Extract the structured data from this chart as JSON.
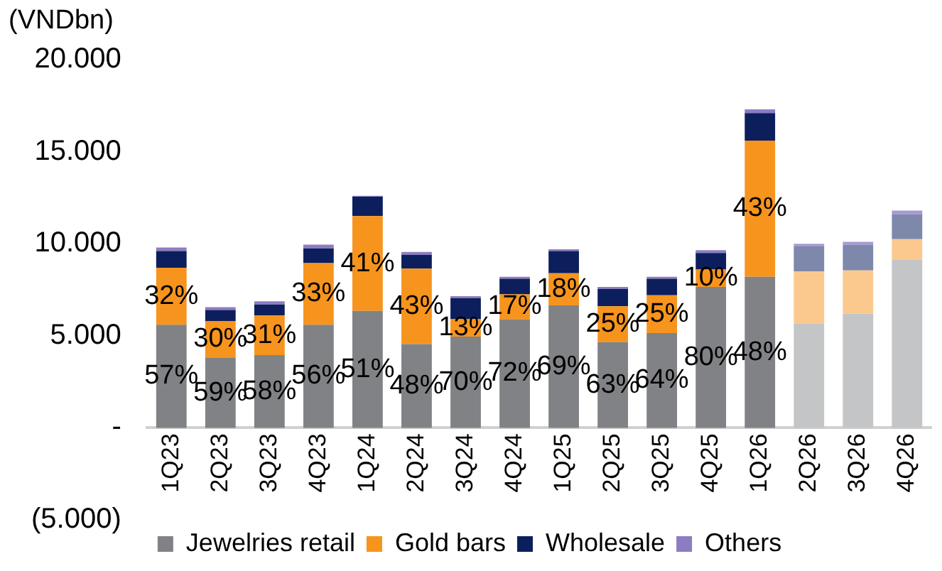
{
  "chart_data": {
    "type": "bar",
    "ylabel": "(VNDbn)",
    "stacked": true,
    "legend": "bottom",
    "grid": false,
    "categories": [
      "1Q23",
      "2Q23",
      "3Q23",
      "4Q23",
      "1Q24",
      "2Q24",
      "3Q24",
      "4Q24",
      "1Q25",
      "2Q25",
      "3Q25",
      "4Q25",
      "1Q26",
      "2Q26",
      "3Q26",
      "4Q26"
    ],
    "ylim": [
      -5000,
      20000
    ],
    "yticks": [
      {
        "value": -5000,
        "label": "(5.000)"
      },
      {
        "value": 0,
        "label": "-"
      },
      {
        "value": 5000,
        "label": "5.000"
      },
      {
        "value": 10000,
        "label": "10.000"
      },
      {
        "value": 15000,
        "label": "15.000"
      },
      {
        "value": 20000,
        "label": "20.000"
      }
    ],
    "series": [
      {
        "name": "Jewelries retail",
        "color": "#808285",
        "colors": [
          "#808285",
          "#808285",
          "#808285",
          "#808285",
          "#808285",
          "#808285",
          "#808285",
          "#808285",
          "#808285",
          "#808285",
          "#808285",
          "#808285",
          "#808285",
          "#c4c5c7",
          "#c4c5c7",
          "#c4c5c7"
        ],
        "values": [
          5600,
          3800,
          3950,
          5600,
          6350,
          4550,
          4950,
          5900,
          6650,
          4650,
          5150,
          7650,
          8200,
          5650,
          6200,
          9150
        ]
      },
      {
        "name": "Gold bars",
        "color": "#f7941d",
        "colors": [
          "#f7941d",
          "#f7941d",
          "#f7941d",
          "#f7941d",
          "#f7941d",
          "#f7941d",
          "#f7941d",
          "#f7941d",
          "#f7941d",
          "#f7941d",
          "#f7941d",
          "#f7941d",
          "#f7941d",
          "#fbc98e",
          "#fbc98e",
          "#fbc98e"
        ],
        "values": [
          3100,
          2000,
          2150,
          3350,
          5150,
          4100,
          950,
          1350,
          1750,
          1950,
          2050,
          950,
          7400,
          2850,
          2350,
          1100
        ]
      },
      {
        "name": "Wholesale",
        "color": "#0c1f5c",
        "colors": [
          "#0c1f5c",
          "#0c1f5c",
          "#0c1f5c",
          "#0c1f5c",
          "#0c1f5c",
          "#0c1f5c",
          "#0c1f5c",
          "#0c1f5c",
          "#0c1f5c",
          "#0c1f5c",
          "#0c1f5c",
          "#0c1f5c",
          "#0c1f5c",
          "#7d88ab",
          "#7d88ab",
          "#7d88ab"
        ],
        "values": [
          900,
          600,
          600,
          800,
          1050,
          750,
          1150,
          850,
          1200,
          950,
          900,
          900,
          1500,
          1350,
          1400,
          1350
        ]
      },
      {
        "name": "Others",
        "color": "#8e7cc3",
        "colors": [
          "#8e7cc3",
          "#8e7cc3",
          "#8e7cc3",
          "#8e7cc3",
          "#8e7cc3",
          "#8e7cc3",
          "#8e7cc3",
          "#8e7cc3",
          "#8e7cc3",
          "#8e7cc3",
          "#8e7cc3",
          "#8e7cc3",
          "#8e7cc3",
          "#a899d4",
          "#a899d4",
          "#a899d4"
        ],
        "values": [
          200,
          150,
          170,
          200,
          50,
          150,
          100,
          100,
          100,
          100,
          100,
          150,
          200,
          150,
          150,
          200
        ]
      }
    ],
    "annotations": [
      {
        "text": "57%",
        "x": "1Q23",
        "y": 5600
      },
      {
        "text": "59%",
        "x": "2Q23",
        "y": 3800
      },
      {
        "text": "58%",
        "x": "3Q23",
        "y": 3950
      },
      {
        "text": "56%",
        "x": "4Q23",
        "y": 5600
      },
      {
        "text": "51%",
        "x": "1Q24",
        "y": 6350
      },
      {
        "text": "48%",
        "x": "2Q24",
        "y": 4550
      },
      {
        "text": "70%",
        "x": "3Q24",
        "y": 4950
      },
      {
        "text": "72%",
        "x": "4Q24",
        "y": 5900
      },
      {
        "text": "69%",
        "x": "1Q25",
        "y": 6650
      },
      {
        "text": "63%",
        "x": "2Q25",
        "y": 4650
      },
      {
        "text": "64%",
        "x": "3Q25",
        "y": 5150
      },
      {
        "text": "80%",
        "x": "4Q25",
        "y": 7650
      },
      {
        "text": "48%",
        "x": "1Q26",
        "y": 8200
      },
      {
        "text": "32%",
        "x": "1Q23",
        "y": 8700
      },
      {
        "text": "30%",
        "x": "2Q23",
        "y": 5800
      },
      {
        "text": "31%",
        "x": "3Q23",
        "y": 6100
      },
      {
        "text": "33%",
        "x": "4Q23",
        "y": 8950
      },
      {
        "text": "41%",
        "x": "1Q24",
        "y": 11500
      },
      {
        "text": "43%",
        "x": "2Q24",
        "y": 8650
      },
      {
        "text": "13%",
        "x": "3Q24",
        "y": 5900
      },
      {
        "text": "17%",
        "x": "4Q24",
        "y": 7250
      },
      {
        "text": "18%",
        "x": "1Q25",
        "y": 8400
      },
      {
        "text": "25%",
        "x": "2Q25",
        "y": 6600
      },
      {
        "text": "25%",
        "x": "3Q25",
        "y": 7200
      },
      {
        "text": "10%",
        "x": "4Q25",
        "y": 8600
      },
      {
        "text": "43%",
        "x": "1Q26",
        "y": 15600
      }
    ]
  }
}
